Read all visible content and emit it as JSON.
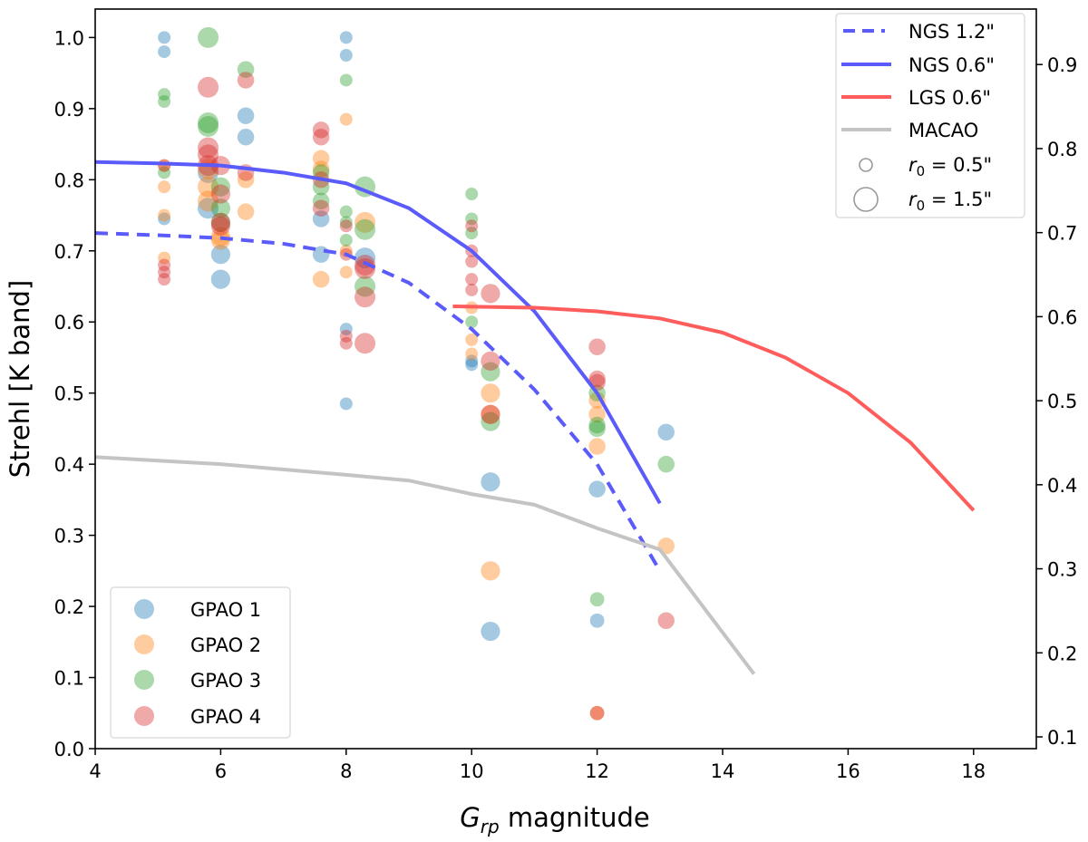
{
  "chart_data": {
    "type": "scatter",
    "xlabel_main": "G",
    "xlabel_sub": "rp",
    "xlabel_rest": " magnitude",
    "ylabel": "Strehl [K band]",
    "xlim": [
      4,
      19
    ],
    "ylim": [
      0,
      1.04
    ],
    "y2lim": [
      0.086,
      0.966
    ],
    "xticks": [
      4,
      6,
      8,
      10,
      12,
      14,
      16,
      18
    ],
    "yticks": [
      "0.0",
      "0.1",
      "0.2",
      "0.3",
      "0.4",
      "0.5",
      "0.6",
      "0.7",
      "0.8",
      "0.9",
      "1.0"
    ],
    "y2ticks": [
      "0.1",
      "0.2",
      "0.3",
      "0.4",
      "0.5",
      "0.6",
      "0.7",
      "0.8",
      "0.9"
    ],
    "grid": false,
    "lines": [
      {
        "name": "NGS 1.2\"",
        "color": "#5b5bfb",
        "dash": true,
        "x": [
          4,
          5,
          6,
          7,
          8,
          9,
          10,
          11,
          12,
          13
        ],
        "y": [
          0.725,
          0.722,
          0.718,
          0.71,
          0.695,
          0.655,
          0.59,
          0.505,
          0.4,
          0.25
        ]
      },
      {
        "name": "NGS 0.6\"",
        "color": "#5b5bfb",
        "dash": false,
        "x": [
          4,
          5,
          6,
          7,
          8,
          9,
          10,
          11,
          12,
          13
        ],
        "y": [
          0.825,
          0.823,
          0.82,
          0.81,
          0.795,
          0.76,
          0.7,
          0.615,
          0.5,
          0.345
        ]
      },
      {
        "name": "LGS 0.6\"",
        "color": "#ff5c5c",
        "dash": false,
        "x": [
          9.7,
          11,
          12,
          13,
          14,
          15,
          16,
          17,
          18
        ],
        "y": [
          0.622,
          0.62,
          0.615,
          0.605,
          0.585,
          0.55,
          0.5,
          0.43,
          0.335
        ]
      },
      {
        "name": "MACAO",
        "color": "#c4c4c4",
        "dash": false,
        "x": [
          4,
          6,
          8,
          9,
          10,
          11,
          12,
          13,
          14.5
        ],
        "y": [
          0.41,
          0.4,
          0.385,
          0.377,
          0.358,
          0.343,
          0.31,
          0.28,
          0.105
        ]
      }
    ],
    "size_legend": [
      {
        "label_var": "r",
        "label_sub": "0",
        "label_rest": " = 0.5\"",
        "r0": 0.5
      },
      {
        "label_var": "r",
        "label_sub": "0",
        "label_rest": " = 1.5\"",
        "r0": 1.5
      }
    ],
    "series": [
      {
        "name": "GPAO 1",
        "color": "#1f77b4",
        "points": [
          [
            5.1,
            1.0,
            0.5
          ],
          [
            5.1,
            0.98,
            0.5
          ],
          [
            5.1,
            0.745,
            0.5
          ],
          [
            5.8,
            0.81,
            1.5
          ],
          [
            5.8,
            0.76,
            1.5
          ],
          [
            6.0,
            0.695,
            1.3
          ],
          [
            6.0,
            0.66,
            1.3
          ],
          [
            6.4,
            0.89,
            1.0
          ],
          [
            6.4,
            0.86,
            1.0
          ],
          [
            7.6,
            0.745,
            1.0
          ],
          [
            7.6,
            0.695,
            1.0
          ],
          [
            8.0,
            1.0,
            0.5
          ],
          [
            8.0,
            0.975,
            0.5
          ],
          [
            8.0,
            0.59,
            0.5
          ],
          [
            8.0,
            0.485,
            0.5
          ],
          [
            8.3,
            0.69,
            1.5
          ],
          [
            10.0,
            0.545,
            0.5
          ],
          [
            10.0,
            0.54,
            0.5
          ],
          [
            10.3,
            0.375,
            1.3
          ],
          [
            10.3,
            0.165,
            1.3
          ],
          [
            12.0,
            0.365,
            1.0
          ],
          [
            12.0,
            0.18,
            0.7
          ],
          [
            13.1,
            0.445,
            1.0
          ]
        ]
      },
      {
        "name": "GPAO 2",
        "color": "#ff7f0e",
        "points": [
          [
            5.1,
            0.82,
            0.5
          ],
          [
            5.1,
            0.79,
            0.5
          ],
          [
            5.1,
            0.75,
            0.5
          ],
          [
            5.1,
            0.69,
            0.5
          ],
          [
            5.8,
            0.815,
            1.5
          ],
          [
            5.8,
            0.79,
            1.5
          ],
          [
            5.8,
            0.77,
            1.5
          ],
          [
            6.0,
            0.72,
            1.3
          ],
          [
            6.0,
            0.715,
            1.3
          ],
          [
            6.4,
            0.8,
            1.0
          ],
          [
            6.4,
            0.755,
            1.0
          ],
          [
            7.6,
            0.83,
            1.0
          ],
          [
            7.6,
            0.815,
            1.0
          ],
          [
            7.6,
            0.66,
            1.0
          ],
          [
            8.0,
            0.885,
            0.5
          ],
          [
            8.0,
            0.7,
            0.5
          ],
          [
            8.0,
            0.67,
            0.5
          ],
          [
            8.3,
            0.74,
            1.5
          ],
          [
            10.0,
            0.62,
            0.5
          ],
          [
            10.0,
            0.575,
            0.5
          ],
          [
            10.0,
            0.555,
            0.5
          ],
          [
            10.3,
            0.5,
            1.3
          ],
          [
            10.3,
            0.47,
            1.3
          ],
          [
            10.3,
            0.25,
            1.3
          ],
          [
            12.0,
            0.49,
            1.0
          ],
          [
            12.0,
            0.47,
            1.0
          ],
          [
            12.0,
            0.425,
            1.0
          ],
          [
            12.0,
            0.05,
            0.7
          ],
          [
            13.1,
            0.285,
            1.0
          ]
        ]
      },
      {
        "name": "GPAO 3",
        "color": "#2ca02c",
        "points": [
          [
            5.1,
            0.92,
            0.5
          ],
          [
            5.1,
            0.91,
            0.5
          ],
          [
            5.1,
            0.81,
            0.5
          ],
          [
            5.8,
            1.0,
            1.5
          ],
          [
            5.8,
            0.88,
            1.5
          ],
          [
            5.8,
            0.875,
            1.5
          ],
          [
            6.0,
            0.79,
            1.3
          ],
          [
            6.0,
            0.76,
            1.3
          ],
          [
            6.0,
            0.74,
            1.3
          ],
          [
            6.4,
            0.955,
            1.0
          ],
          [
            7.6,
            0.81,
            1.0
          ],
          [
            7.6,
            0.79,
            1.0
          ],
          [
            7.6,
            0.77,
            1.0
          ],
          [
            8.0,
            0.94,
            0.5
          ],
          [
            8.0,
            0.755,
            0.5
          ],
          [
            8.0,
            0.74,
            0.5
          ],
          [
            8.0,
            0.715,
            0.5
          ],
          [
            8.3,
            0.79,
            1.5
          ],
          [
            8.3,
            0.73,
            1.5
          ],
          [
            8.3,
            0.65,
            1.5
          ],
          [
            10.0,
            0.78,
            0.5
          ],
          [
            10.0,
            0.745,
            0.5
          ],
          [
            10.0,
            0.725,
            0.5
          ],
          [
            10.0,
            0.6,
            0.5
          ],
          [
            10.3,
            0.53,
            1.3
          ],
          [
            10.3,
            0.46,
            1.3
          ],
          [
            12.0,
            0.5,
            1.0
          ],
          [
            12.0,
            0.455,
            1.0
          ],
          [
            12.0,
            0.45,
            1.0
          ],
          [
            12.0,
            0.21,
            0.7
          ],
          [
            13.1,
            0.4,
            1.0
          ]
        ]
      },
      {
        "name": "GPAO 4",
        "color": "#d62728",
        "points": [
          [
            5.1,
            0.82,
            0.5
          ],
          [
            5.1,
            0.68,
            0.5
          ],
          [
            5.1,
            0.67,
            0.5
          ],
          [
            5.1,
            0.66,
            0.5
          ],
          [
            5.8,
            0.93,
            1.5
          ],
          [
            5.8,
            0.845,
            1.5
          ],
          [
            5.8,
            0.835,
            1.5
          ],
          [
            5.8,
            0.82,
            1.5
          ],
          [
            6.0,
            0.82,
            1.3
          ],
          [
            6.0,
            0.78,
            1.3
          ],
          [
            6.0,
            0.74,
            1.3
          ],
          [
            6.0,
            0.735,
            1.3
          ],
          [
            6.4,
            0.94,
            1.0
          ],
          [
            6.4,
            0.81,
            1.0
          ],
          [
            7.6,
            0.87,
            1.0
          ],
          [
            7.6,
            0.86,
            1.0
          ],
          [
            7.6,
            0.8,
            1.0
          ],
          [
            7.6,
            0.76,
            1.0
          ],
          [
            8.0,
            0.735,
            0.5
          ],
          [
            8.0,
            0.695,
            0.5
          ],
          [
            8.0,
            0.58,
            0.5
          ],
          [
            8.0,
            0.57,
            0.5
          ],
          [
            8.3,
            0.68,
            1.5
          ],
          [
            8.3,
            0.675,
            1.5
          ],
          [
            8.3,
            0.635,
            1.5
          ],
          [
            8.3,
            0.57,
            1.5
          ],
          [
            10.0,
            0.735,
            0.5
          ],
          [
            10.0,
            0.7,
            0.5
          ],
          [
            10.0,
            0.685,
            0.5
          ],
          [
            10.0,
            0.66,
            0.5
          ],
          [
            10.0,
            0.645,
            0.5
          ],
          [
            10.3,
            0.64,
            1.3
          ],
          [
            10.3,
            0.545,
            1.3
          ],
          [
            10.3,
            0.47,
            1.3
          ],
          [
            12.0,
            0.565,
            1.0
          ],
          [
            12.0,
            0.52,
            1.0
          ],
          [
            12.0,
            0.515,
            1.0
          ],
          [
            12.0,
            0.05,
            0.7
          ],
          [
            13.1,
            0.18,
            1.0
          ]
        ]
      }
    ]
  }
}
